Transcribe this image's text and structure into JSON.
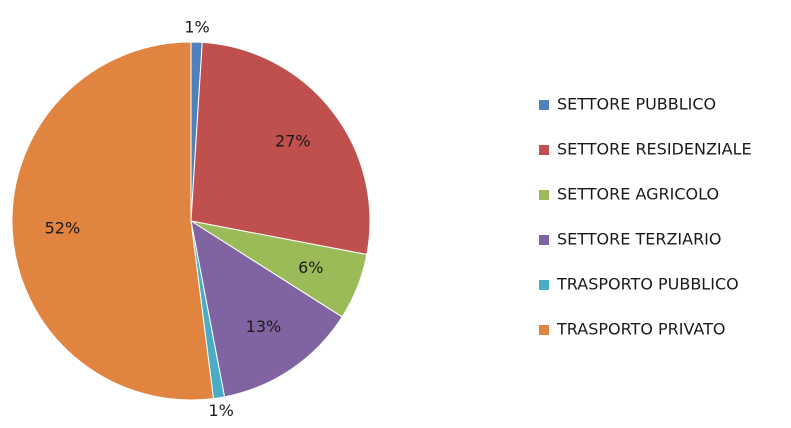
{
  "chart_data": {
    "type": "pie",
    "categories": [
      "SETTORE PUBBLICO",
      "SETTORE RESIDENZIALE",
      "SETTORE AGRICOLO",
      "SETTORE TERZIARIO",
      "TRASPORTO PUBBLICO",
      "TRASPORTO PRIVATO"
    ],
    "values": [
      1,
      27,
      6,
      13,
      1,
      52
    ],
    "value_labels": [
      "1%",
      "27%",
      "6%",
      "13%",
      "1%",
      "52%"
    ],
    "colors": [
      "#4f81bd",
      "#c0504d",
      "#9bbb59",
      "#8064a2",
      "#4bacc6",
      "#e0843f"
    ],
    "legend": "right"
  }
}
